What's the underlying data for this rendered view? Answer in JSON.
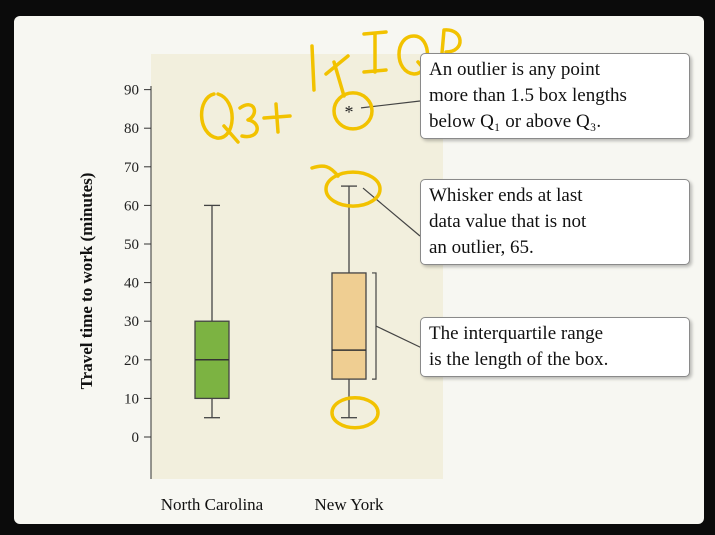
{
  "chart_data": {
    "type": "box",
    "ylabel": "Travel time to work (minutes)",
    "ylim": [
      -9,
      100
    ],
    "yticks": [
      0,
      10,
      20,
      30,
      40,
      50,
      60,
      70,
      80,
      90
    ],
    "categories": [
      "North Carolina",
      "New York"
    ],
    "boxes": [
      {
        "name": "North Carolina",
        "min": 5,
        "q1": 10,
        "median": 20,
        "q3": 30,
        "max": 60,
        "outliers": [],
        "color": "#7cb342"
      },
      {
        "name": "New York",
        "min": 5,
        "q1": 15,
        "median": 22.5,
        "q3": 42.5,
        "max": 65,
        "outliers": [
          85
        ],
        "color": "#efce92"
      }
    ],
    "plot_background": "#f2efdd"
  },
  "callouts": {
    "outlier": {
      "line1": "An outlier is any point",
      "line2": "more than 1.5 box lengths",
      "line3": "below Q₁ or above Q₃."
    },
    "whisker": {
      "line1": "Whisker ends at last",
      "line2": "data value that is not",
      "line3": "an outlier, 65."
    },
    "iqr": {
      "line1": "The interquartile range",
      "line2": "is the length of the box."
    }
  },
  "annotations": {
    "handwriting_text": "Q3+1.5×IQR",
    "ink_color": "#f2c200"
  }
}
